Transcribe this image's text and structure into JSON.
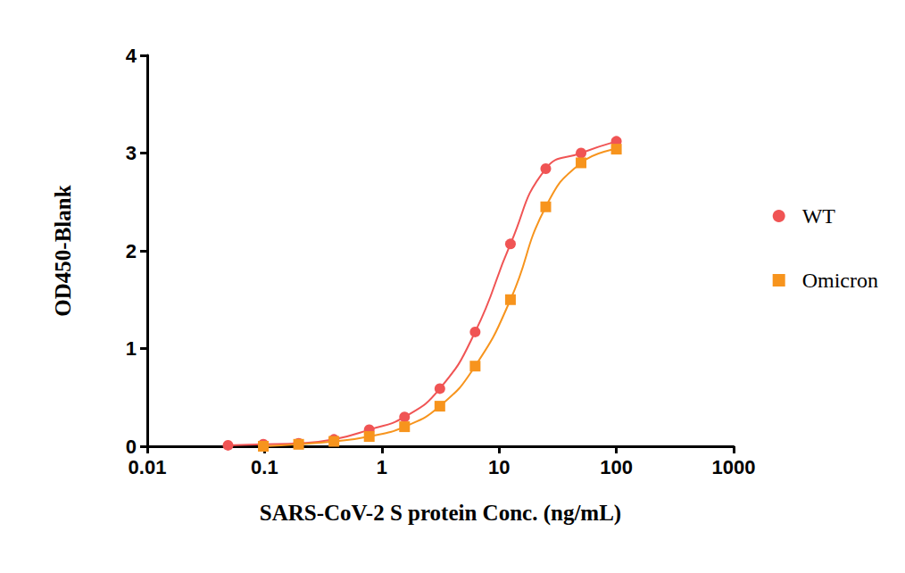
{
  "chart_data": {
    "type": "line",
    "xlabel": "SARS-CoV-2 S protein Conc. (ng/mL)",
    "ylabel": "OD450-Blank",
    "log": "x",
    "x": [
      0.048828125,
      0.09765625,
      0.1953125,
      0.390625,
      0.78125,
      1.5625,
      3.125,
      6.25,
      12.5,
      25,
      50,
      100
    ],
    "series": [
      {
        "name": "WT",
        "color": "#f05454",
        "marker": "circle",
        "values": [
          0.01,
          0.02,
          0.03,
          0.07,
          0.17,
          0.3,
          0.59,
          1.17,
          2.07,
          2.84,
          3.0,
          3.12
        ]
      },
      {
        "name": "Omicron",
        "color": "#f7941d",
        "marker": "square",
        "values": [
          null,
          0.0,
          0.02,
          0.05,
          0.1,
          0.2,
          0.41,
          0.82,
          1.5,
          2.45,
          2.9,
          3.04
        ]
      }
    ],
    "xlim": [
      0.01,
      1000
    ],
    "xticks": [
      0.01,
      0.1,
      1,
      10,
      100,
      1000
    ],
    "ylim": [
      0,
      4
    ],
    "yticks": [
      0,
      1,
      2,
      3,
      4
    ],
    "grid": false,
    "legend": "right"
  }
}
